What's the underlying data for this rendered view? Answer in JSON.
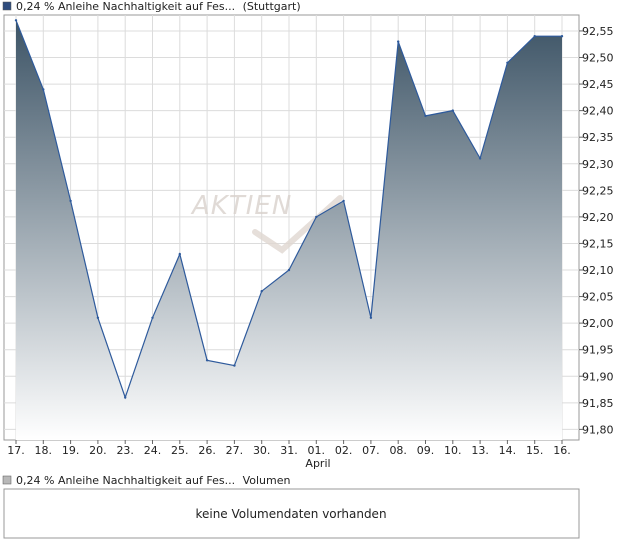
{
  "price_legend": {
    "label": "0,24 % Anleihe Nachhaltigkeit auf Fes...",
    "exchange": "(Stuttgart)",
    "swatch_color": "#2f4c7d"
  },
  "volume_legend": {
    "label": "0,24 % Anleihe Nachhaltigkeit auf Fes...",
    "suffix": "Volumen",
    "swatch_color": "#b8b8b8"
  },
  "volume_message": "keine Volumendaten vorhanden",
  "watermark": "AKTIEN",
  "month_label": "April",
  "colors": {
    "line": "#2e5a9c",
    "fill_top": "#3d5466",
    "fill_bottom": "#ffffff",
    "grid": "#dcdcdc",
    "frame": "#999999"
  },
  "chart_data": {
    "type": "area",
    "x": [
      "17.",
      "18.",
      "19.",
      "20.",
      "23.",
      "24.",
      "25.",
      "26.",
      "27.",
      "30.",
      "31.",
      "01.",
      "02.",
      "07.",
      "08.",
      "09.",
      "10.",
      "13.",
      "14.",
      "15.",
      "16."
    ],
    "values": [
      92.57,
      92.44,
      92.23,
      92.01,
      91.86,
      92.01,
      92.13,
      91.93,
      91.92,
      92.06,
      92.1,
      92.2,
      92.23,
      92.01,
      92.53,
      92.39,
      92.4,
      92.31,
      92.49,
      92.54,
      92.54
    ],
    "y_ticks": [
      "92,55",
      "92,50",
      "92,45",
      "92,40",
      "92,35",
      "92,30",
      "92,25",
      "92,20",
      "92,15",
      "92,10",
      "92,05",
      "92,00",
      "91,95",
      "91,90",
      "91,85",
      "91,80"
    ],
    "ylim": [
      91.78,
      92.58
    ],
    "grid": true,
    "y_axis_side": "right"
  }
}
